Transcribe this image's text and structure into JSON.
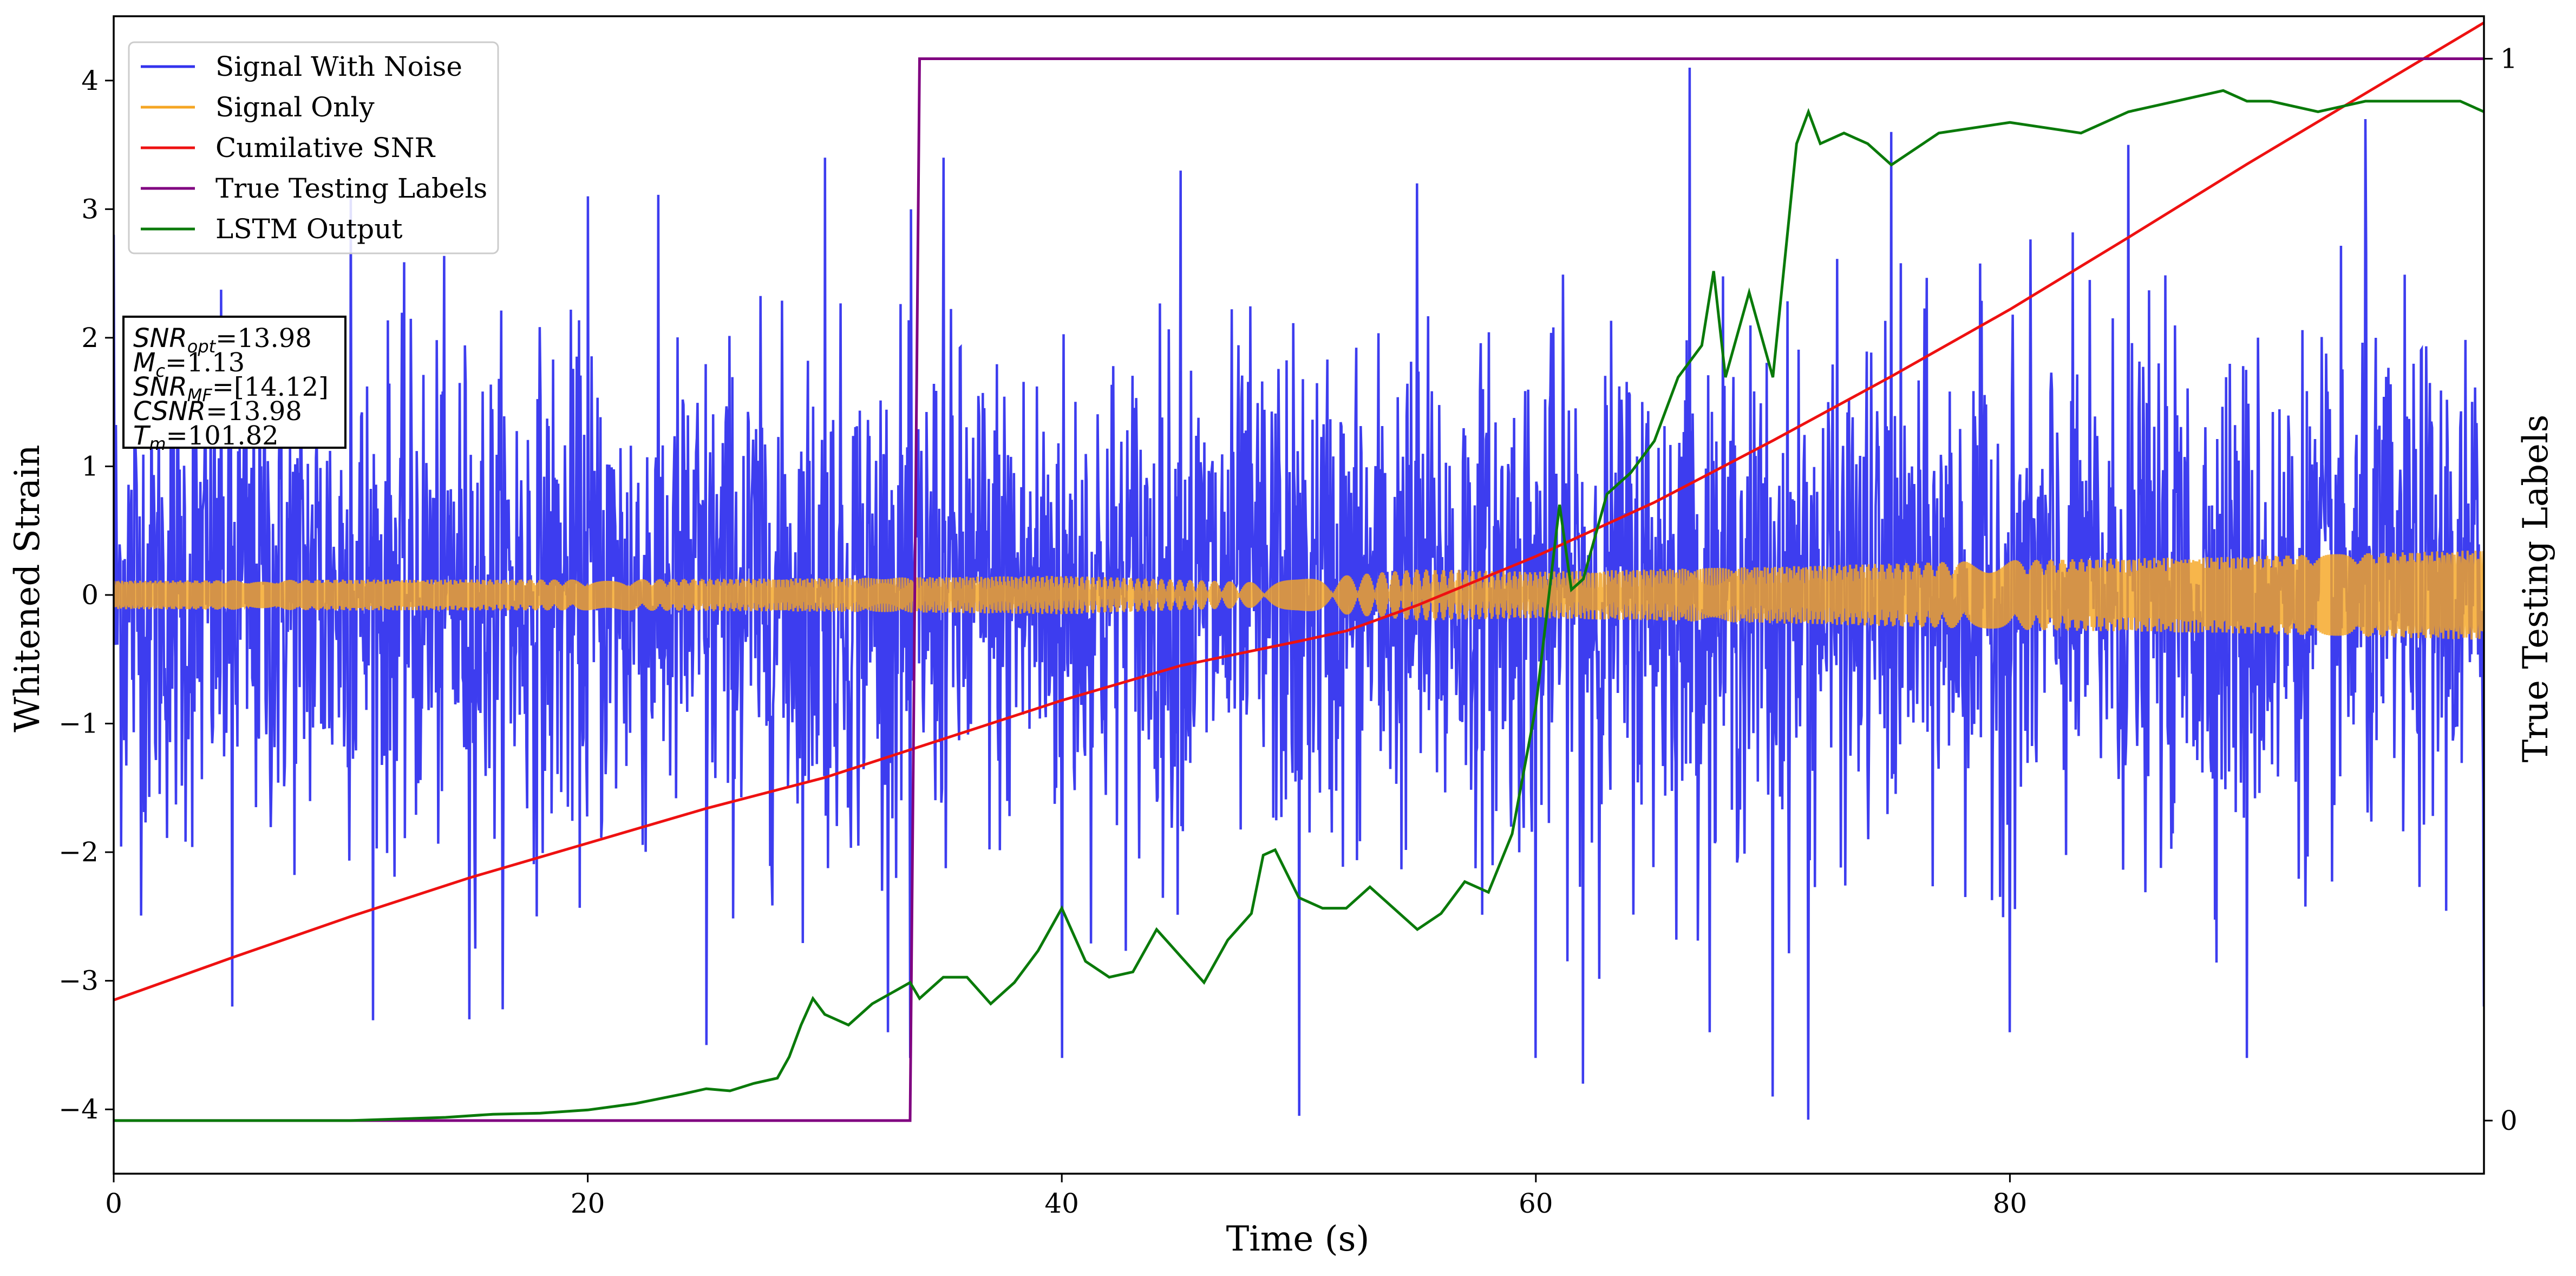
{
  "chart_data": {
    "type": "line",
    "title": "",
    "xlabel": "Time (s)",
    "ylabel": "Whitened Strain",
    "y2label": "True Testing Labels",
    "xlim": [
      0,
      100
    ],
    "ylim": [
      -4.5,
      4.5
    ],
    "y2lim": [
      -0.05,
      1.04
    ],
    "x_ticks": [
      0,
      20,
      40,
      60,
      80
    ],
    "y_ticks": [
      -4,
      -3,
      -2,
      -1,
      0,
      1,
      2,
      3,
      4
    ],
    "y2_ticks": [
      0,
      1
    ],
    "grid": false,
    "legend_position": "top-left",
    "series": [
      {
        "name": "Signal With Noise",
        "axis": "left",
        "color": "#3333ee",
        "style": "dense noisy trace, roughly ±1.2 band with spikes to ±3.5",
        "x": [
          0,
          5,
          10,
          15,
          20,
          25,
          30,
          33.6,
          35,
          40,
          45,
          50,
          55,
          60,
          62,
          66.5,
          70,
          71.5,
          75,
          80,
          85,
          90,
          95,
          100
        ],
        "values": [
          2.8,
          -3.2,
          3.1,
          -3.3,
          3.1,
          -3.5,
          3.4,
          -3.6,
          3.4,
          -3.6,
          3.3,
          -4.05,
          3.2,
          -3.6,
          -3.8,
          4.1,
          -3.9,
          -4.08,
          3.6,
          -3.4,
          3.5,
          -3.6,
          3.7,
          -3.2
        ]
      },
      {
        "name": "Signal Only",
        "axis": "left",
        "color": "#f5a623",
        "style": "chirp oscillation with slowly growing amplitude",
        "x": [
          0,
          10,
          20,
          30,
          40,
          48,
          50,
          55,
          60,
          70,
          80,
          90,
          100
        ],
        "amplitude": [
          0.11,
          0.12,
          0.12,
          0.13,
          0.15,
          0.1,
          0.12,
          0.2,
          0.18,
          0.22,
          0.27,
          0.3,
          0.35
        ]
      },
      {
        "name": "Cumilative SNR",
        "axis": "left",
        "color": "#ee1111",
        "x": [
          0,
          5,
          10,
          15,
          20,
          25,
          30,
          35,
          40,
          45,
          50,
          52,
          55,
          60,
          65,
          70,
          75,
          80,
          85,
          90,
          95,
          100
        ],
        "values": [
          -3.15,
          -2.82,
          -2.5,
          -2.2,
          -1.93,
          -1.66,
          -1.42,
          -1.12,
          -0.82,
          -0.55,
          -0.36,
          -0.28,
          -0.08,
          0.3,
          0.72,
          1.2,
          1.7,
          2.22,
          2.78,
          3.35,
          3.9,
          4.45
        ]
      },
      {
        "name": "True Testing Labels",
        "axis": "right",
        "color": "#800080",
        "x": [
          0,
          33.6,
          34.0,
          100
        ],
        "values": [
          0,
          0,
          1,
          1
        ]
      },
      {
        "name": "LSTM Output",
        "axis": "right",
        "color": "#0a7a0a",
        "x": [
          0,
          10,
          14,
          16,
          18,
          20,
          22,
          24,
          25,
          26,
          27,
          28,
          28.5,
          29,
          29.5,
          30,
          31,
          32,
          33.6,
          34,
          35,
          36,
          37,
          38,
          39,
          40,
          41,
          42,
          43,
          44,
          45,
          46,
          47,
          48,
          48.5,
          49,
          50,
          51,
          52,
          53,
          54,
          55,
          56,
          57,
          58,
          59,
          60,
          61,
          61.5,
          62,
          63,
          64,
          65,
          66,
          67,
          67.5,
          68,
          69,
          70,
          71,
          71.5,
          72,
          73,
          74,
          75,
          77,
          80,
          83,
          85,
          87,
          89,
          90,
          91,
          93,
          95,
          97,
          99,
          100
        ],
        "values": [
          0,
          0,
          0.003,
          0.006,
          0.007,
          0.01,
          0.016,
          0.025,
          0.03,
          0.028,
          0.035,
          0.04,
          0.06,
          0.09,
          0.115,
          0.1,
          0.09,
          0.11,
          0.13,
          0.115,
          0.135,
          0.135,
          0.11,
          0.13,
          0.16,
          0.2,
          0.15,
          0.135,
          0.14,
          0.18,
          0.155,
          0.13,
          0.17,
          0.195,
          0.25,
          0.255,
          0.21,
          0.2,
          0.2,
          0.22,
          0.2,
          0.18,
          0.195,
          0.225,
          0.215,
          0.27,
          0.39,
          0.58,
          0.5,
          0.51,
          0.59,
          0.61,
          0.64,
          0.7,
          0.73,
          0.8,
          0.7,
          0.78,
          0.7,
          0.92,
          0.95,
          0.92,
          0.93,
          0.92,
          0.9,
          0.93,
          0.94,
          0.93,
          0.95,
          0.96,
          0.97,
          0.96,
          0.96,
          0.95,
          0.96,
          0.96,
          0.96,
          0.95
        ]
      }
    ],
    "annotation": {
      "lines": [
        {
          "label": "SNR",
          "subscript": "opt",
          "value": "=13.98"
        },
        {
          "label": "M",
          "subscript": "c",
          "value": "=1.13"
        },
        {
          "label": "SNR",
          "subscript": "MF",
          "value": "=[14.12]"
        },
        {
          "label": "CSNR",
          "subscript": "",
          "value": "=13.98"
        },
        {
          "label": "T",
          "subscript": "m",
          "value": "=101.82"
        }
      ]
    }
  }
}
